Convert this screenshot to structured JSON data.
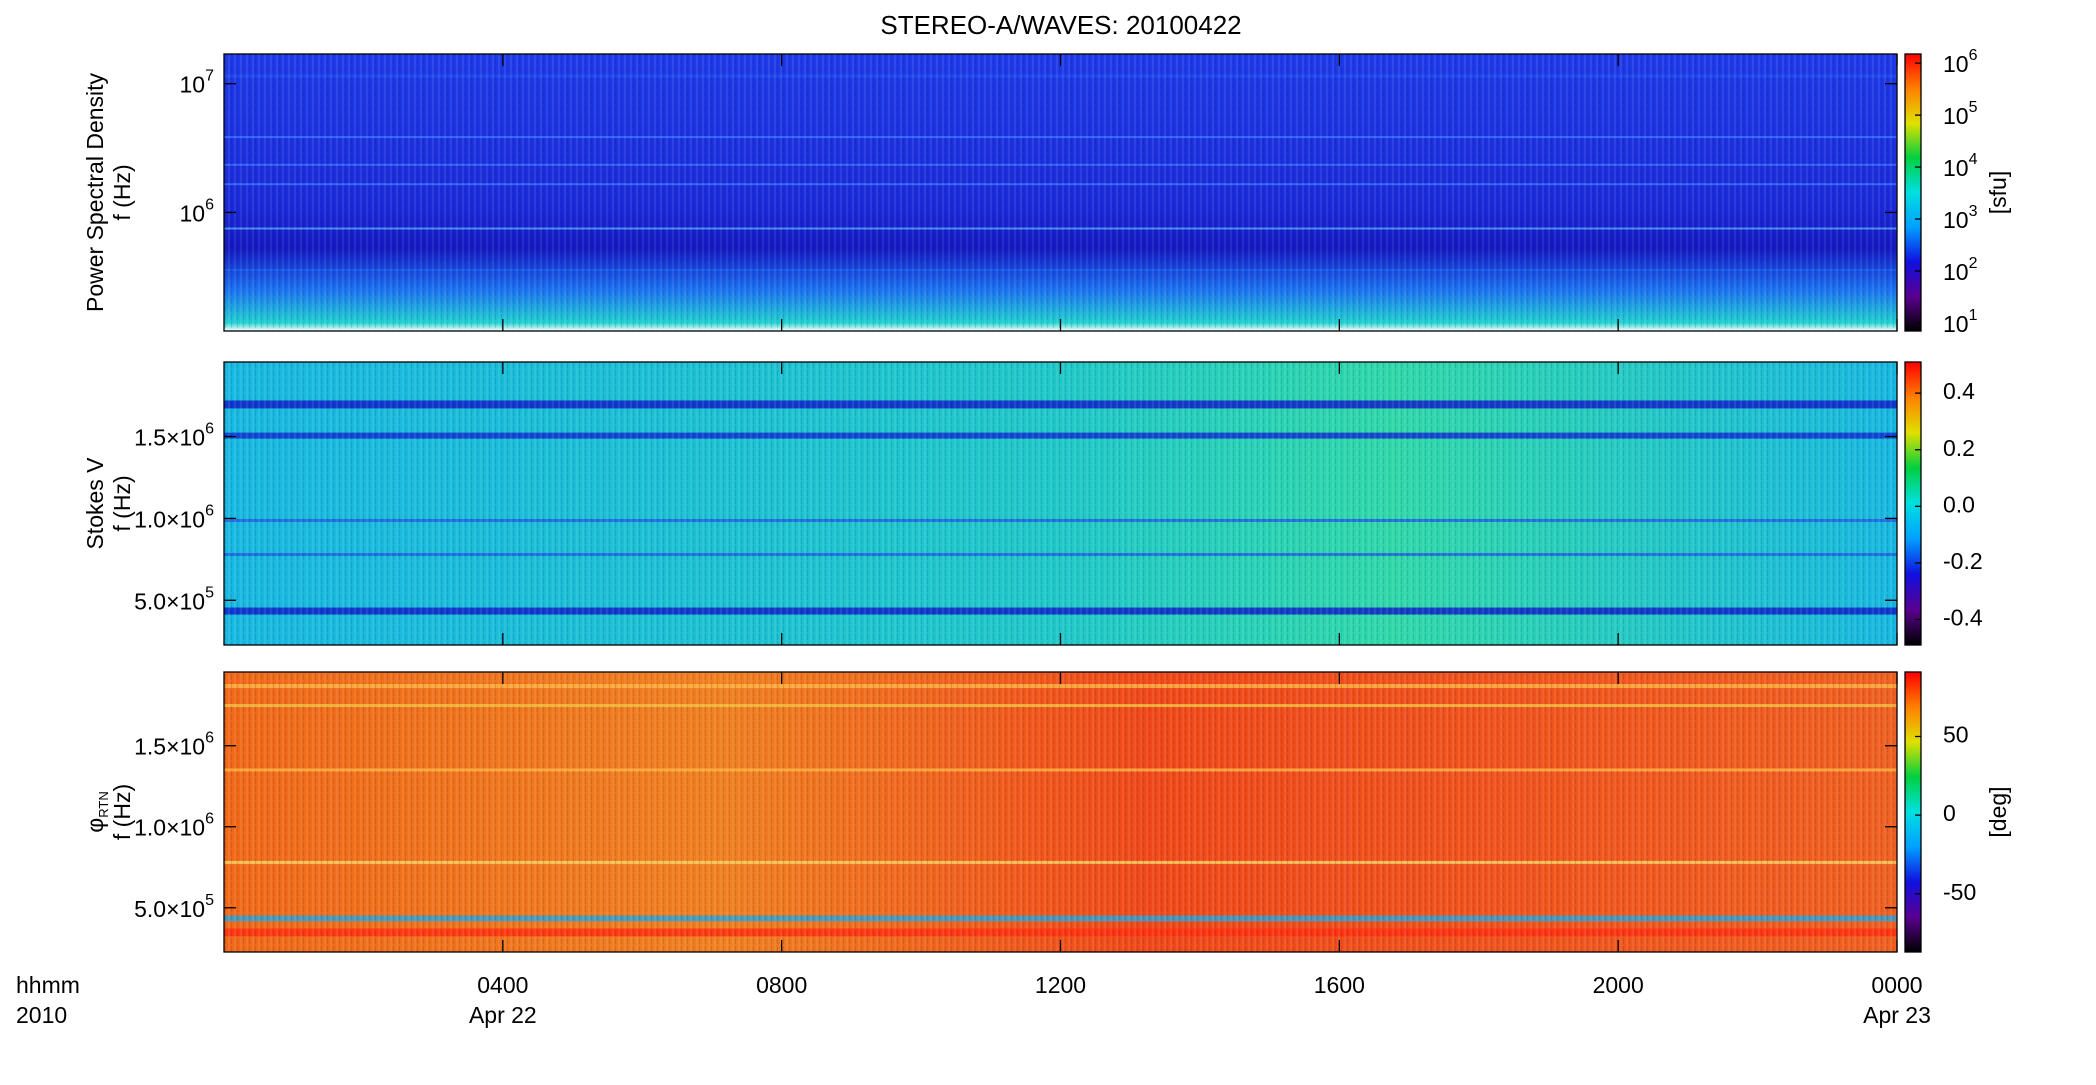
{
  "title": "STEREO-A/WAVES: 20100422",
  "x_axis": {
    "xlim": [
      0,
      24
    ],
    "ticks": [
      {
        "value": 4,
        "label": "0400",
        "sublabel": "Apr 22"
      },
      {
        "value": 8,
        "label": "0800"
      },
      {
        "value": 12,
        "label": "1200"
      },
      {
        "value": 16,
        "label": "1600"
      },
      {
        "value": 20,
        "label": "2000"
      },
      {
        "value": 24,
        "label": "0000",
        "sublabel": "Apr 23"
      }
    ],
    "unit_labels": [
      "hhmm",
      "2010"
    ]
  },
  "chart_data": [
    {
      "type": "heatmap",
      "ylabel": [
        "Power Spectral Density",
        "f (Hz)"
      ],
      "yscale": "log",
      "ylim": [
        120000,
        17000000
      ],
      "yticks": [
        {
          "value": 1000000,
          "label": "10",
          "exponent": "6"
        },
        {
          "value": 10000000,
          "label": "10",
          "exponent": "7"
        }
      ],
      "colorbar": {
        "scale": "log",
        "clim": [
          7,
          1500000
        ],
        "label": "[sfu]",
        "ticks": [
          {
            "value": 10,
            "label": "10",
            "exponent": "1"
          },
          {
            "value": 100,
            "label": "10",
            "exponent": "2"
          },
          {
            "value": 1000,
            "label": "10",
            "exponent": "3"
          },
          {
            "value": 10000,
            "label": "10",
            "exponent": "4"
          },
          {
            "value": 100000,
            "label": "10",
            "exponent": "5"
          },
          {
            "value": 1000000,
            "label": "10",
            "exponent": "6"
          }
        ]
      }
    },
    {
      "type": "heatmap",
      "ylabel": [
        "Stokes V",
        "f (Hz)"
      ],
      "yscale": "linear",
      "ylim": [
        227000,
        1955000
      ],
      "yticks": [
        {
          "value": 500000,
          "label": "5.0×10",
          "exponent": "5"
        },
        {
          "value": 1000000,
          "label": "1.0×10",
          "exponent": "6"
        },
        {
          "value": 1500000,
          "label": "1.5×10",
          "exponent": "6"
        }
      ],
      "colorbar": {
        "scale": "linear",
        "clim": [
          -0.49,
          0.51
        ],
        "ticks": [
          -0.4,
          -0.2,
          {
            "value": 0,
            "label": "0.0"
          },
          0.2,
          0.4
        ]
      }
    },
    {
      "type": "heatmap",
      "ylabel": [
        {
          "text": "φ",
          "subscript": "RTN"
        },
        "f (Hz)"
      ],
      "yscale": "linear",
      "ylim": [
        227000,
        1955000
      ],
      "yticks": [
        {
          "value": 500000,
          "label": "5.0×10",
          "exponent": "5"
        },
        {
          "value": 1000000,
          "label": "1.0×10",
          "exponent": "6"
        },
        {
          "value": 1500000,
          "label": "1.5×10",
          "exponent": "6"
        }
      ],
      "colorbar": {
        "scale": "linear",
        "clim": [
          -87,
          91
        ],
        "label": "[deg]",
        "ticks": [
          -50,
          0,
          50
        ]
      }
    }
  ],
  "colorscale": [
    "#000000",
    "#5a0090",
    "#1010e0",
    "#00a0ff",
    "#00e0e0",
    "#00d040",
    "#e0e000",
    "#ff8000",
    "#ff0000"
  ]
}
